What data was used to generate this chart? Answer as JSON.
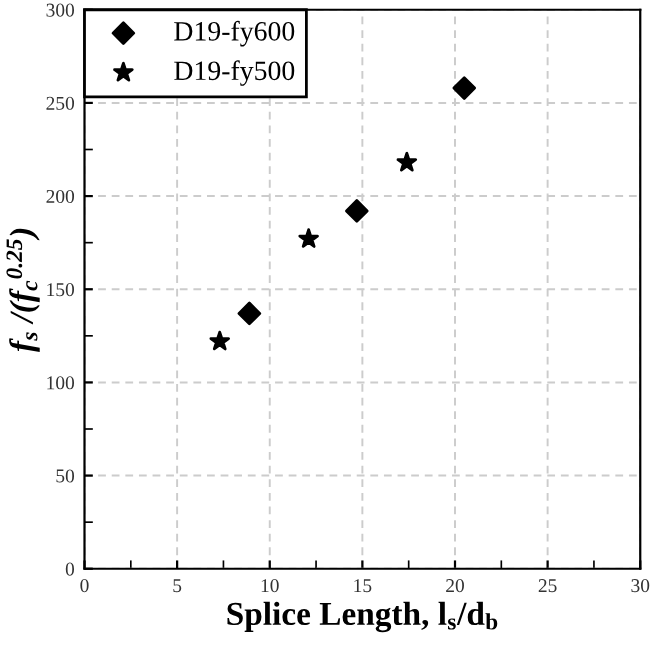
{
  "chart_data": {
    "type": "scatter",
    "xlabel": "Splice Length, l$_{s}$/d$_{b}$",
    "ylabel": "f$_{s}$ /(f$_{c}$$^{0.25}$)",
    "series": [
      {
        "name": "D19-fy600",
        "color": "#000000",
        "marker": "diamond",
        "x": [
          8.9,
          14.7,
          20.5
        ],
        "values": [
          137,
          192,
          258
        ]
      },
      {
        "name": "D19-fy500",
        "color": "#000000",
        "marker": "star",
        "x": [
          7.3,
          12.1,
          17.4
        ],
        "values": [
          122,
          177,
          218
        ]
      }
    ],
    "xlim": [
      0,
      30
    ],
    "xticks": [
      0,
      5,
      10,
      15,
      20,
      25,
      30
    ],
    "ylim": [
      0,
      300
    ],
    "yticks": [
      0,
      50,
      100,
      150,
      200,
      250,
      300
    ],
    "grid": true,
    "legend": "top left"
  }
}
